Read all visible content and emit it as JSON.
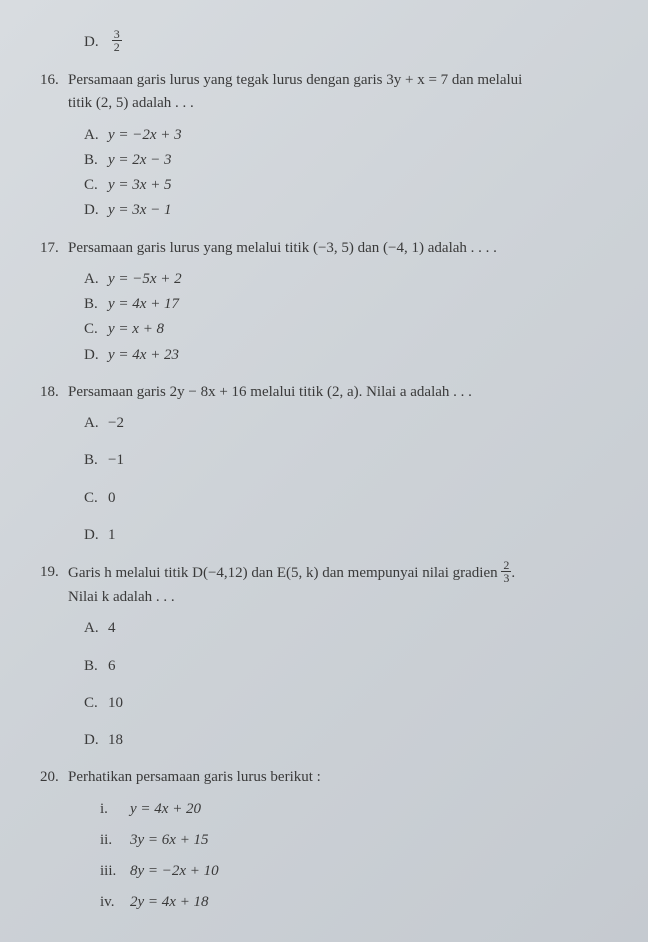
{
  "optD_top": {
    "letter": "D.",
    "text_before": "",
    "frac_num": "3",
    "frac_den": "2"
  },
  "q16": {
    "num": "16.",
    "stem1": "Persamaan garis lurus yang tegak lurus dengan garis 3y + x = 7 dan melalui",
    "stem2": "titik (2, 5) adalah . . .",
    "A": {
      "letter": "A.",
      "text": "y = −2x + 3"
    },
    "B": {
      "letter": "B.",
      "text": "y = 2x − 3"
    },
    "C": {
      "letter": "C.",
      "text": "y = 3x + 5"
    },
    "D": {
      "letter": "D.",
      "text": "y = 3x − 1"
    }
  },
  "q17": {
    "num": "17.",
    "stem": "Persamaan garis lurus yang melalui titik (−3, 5) dan (−4, 1) adalah . . . .",
    "A": {
      "letter": "A.",
      "text": "y = −5x + 2"
    },
    "B": {
      "letter": "B.",
      "text": "y = 4x + 17"
    },
    "C": {
      "letter": "C.",
      "text": "y = x + 8"
    },
    "D": {
      "letter": "D.",
      "text": "y = 4x + 23"
    }
  },
  "q18": {
    "num": "18.",
    "stem": "Persamaan garis 2y − 8x + 16 melalui titik (2, a). Nilai a adalah . . .",
    "A": {
      "letter": "A.",
      "text": "−2"
    },
    "B": {
      "letter": "B.",
      "text": "−1"
    },
    "C": {
      "letter": "C.",
      "text": "0"
    },
    "D": {
      "letter": "D.",
      "text": "1"
    }
  },
  "q19": {
    "num": "19.",
    "stem_before": "Garis h melalui titik D(−4,12) dan E(5, k) dan mempunyai nilai gradien ",
    "frac_num": "2",
    "frac_den": "3",
    "stem_after": ".",
    "stem2": "Nilai k adalah . . .",
    "A": {
      "letter": "A.",
      "text": "4"
    },
    "B": {
      "letter": "B.",
      "text": "6"
    },
    "C": {
      "letter": "C.",
      "text": "10"
    },
    "D": {
      "letter": "D.",
      "text": "18"
    }
  },
  "q20": {
    "num": "20.",
    "stem": "Perhatikan persamaan garis lurus berikut :",
    "i": {
      "letter": "i.",
      "text": "y = 4x + 20"
    },
    "ii": {
      "letter": "ii.",
      "text": "3y = 6x + 15"
    },
    "iii": {
      "letter": "iii.",
      "text": "8y = −2x + 10"
    },
    "iv": {
      "letter": "iv.",
      "text": "2y = 4x + 18"
    }
  }
}
